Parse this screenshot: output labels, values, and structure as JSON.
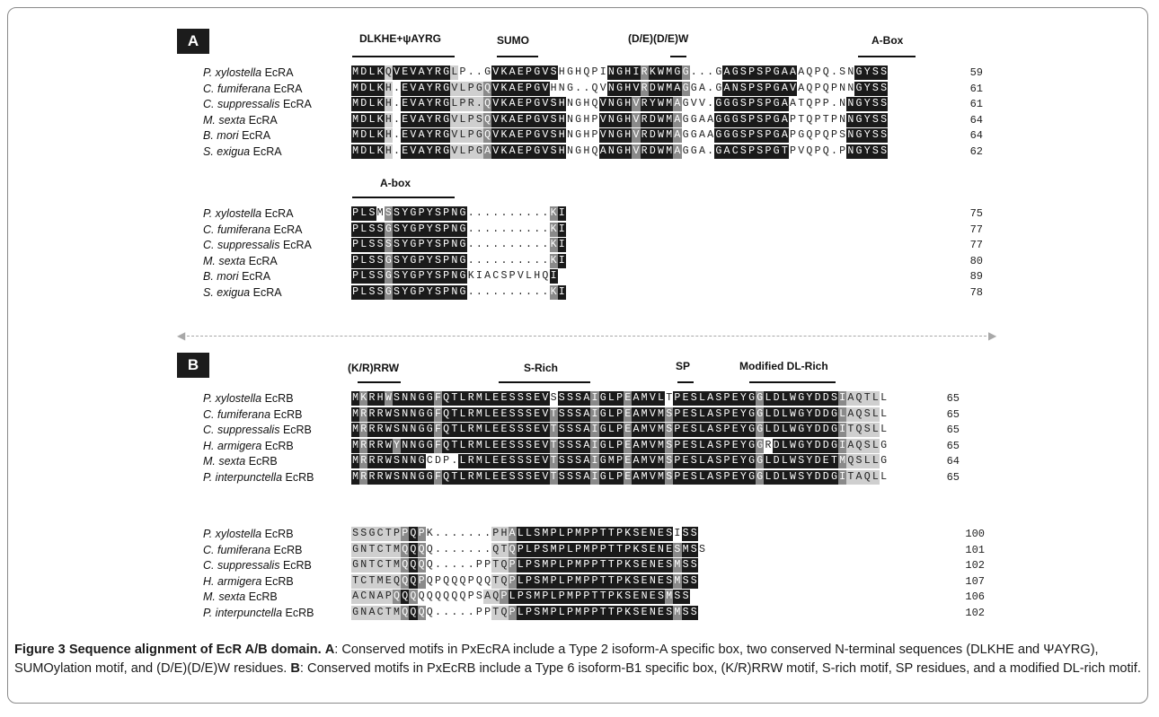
{
  "figure": {
    "panel_a_label": "A",
    "panel_b_label": "B",
    "caption": {
      "title": "Figure 3 Sequence alignment of EcR A/B domain.",
      "a_label": "A",
      "a_text": ": Conserved motifs in PxEcRA include a Type 2 isoform-A specific box, two conserved N-terminal sequences (DLKHE and ΨAYRG), SUMOylation motif, and (D/E)(D/E)W residues.",
      "b_label": "B",
      "b_text": ": Conserved motifs in PxEcRB include a Type 6 isoform-B1 specific box, (K/R)RRW motif, S-rich motif, SP residues, and a modified DL-rich motif."
    }
  },
  "motifs": {
    "a1": [
      "DLKHE+ψAYRG",
      "SUMO",
      "(D/E)(D/E)W",
      "A-Box"
    ],
    "a2": [
      "A-box"
    ],
    "b1": [
      "(K/R)RRW",
      "S-Rich",
      "SP",
      "Modified DL-Rich"
    ]
  },
  "alignments": [
    {
      "id": "a1",
      "rows": [
        {
          "genus": "P. xylostella",
          "gene": "EcRA",
          "seq": "MDLKQVEVAYRGLP..GVKAEPGVSHGHQPINGHIRKWMGG...GAGSPSPGAAAQPQ.SNGYSS",
          "shade": "bbbblbbbbbbblwwwwbbbbbbbbwwwwwwbbbbgbbbbgwwwwbbbbbbbbbwwwwwwwbbbbbb",
          "num": "59"
        },
        {
          "genus": "C. fumiferana",
          "gene": "EcRA",
          "seq": "MDLKH.EVAYRGVLPGQVKAEPGVHNG..QVNGHVRDWMAGGA.GANSPSPGAVAQPQPNNGYSS",
          "shade": "bbbblwbbbbbbllllgbbbbbbbwwwwwwwbbbbgbbbbgwwwwbbbbbbbbbwwwwwwwbbbbbb",
          "num": "61"
        },
        {
          "genus": "C. suppressalis",
          "gene": "EcRA",
          "seq": "MDLKH.EVAYRGLPR.QVKAEPGVSHNGHQVNGHVRYWMAGVV.GGGSPSPGAATQPP.NNGYSS",
          "shade": "bbbblwbbbbbbllllgbbbbbbbbbwwwwbbbbgbbbbgwwwwbbbbbbbbbwwwwwwwbbbbbb",
          "num": "61"
        },
        {
          "genus": "M. sexta",
          "gene": "EcRA",
          "seq": "MDLKH.EVAYRGVLPSQVKAEPGVSHNGHPVNGHVRDWMAGGAAGGGSPSPGAPTQPTPNNGYSS",
          "shade": "bbbblwbbbbbbllllgbbbbbbbbbwwwwbbbbgbbbbgwwwwbbbbbbbbbwwwwwwwbbbbbb",
          "num": "64"
        },
        {
          "genus": "B. mori",
          "gene": "EcRA",
          "seq": "MDLKH.EVAYRGVLPGQVKAEPGVSHNGHPVNGHVRDWMAGGAAGGGSPSPGAPGQPQPSNGYSS",
          "shade": "bbbblwbbbbbbllllgbbbbbbbbbwwwwbbbbgbbbbgwwwwbbbbbbbbbwwwwwwwbbbbbb",
          "num": "64"
        },
        {
          "genus": "S. exigua",
          "gene": "EcRA",
          "seq": "MDLKH.EVAYRGVLPGAVKAEPGVSHNGHQANGHVRDWMAGGA.GACSPSPGTPVQPQ.PNGYSS",
          "shade": "bbbblwbbbbbbllllgbbbbbbbbbwwwwbbbbgbbbbgwwwwbbbbbbbbbwwwwwwwbbbbbb",
          "num": "62"
        }
      ]
    },
    {
      "id": "a2",
      "rows": [
        {
          "genus": "P. xylostella",
          "gene": "EcRA",
          "seq": "PLSMSSYGPYSPNG..........KI",
          "shade": "bbbwgbbbbbbbbbwwwwwwwwwwgb",
          "num": "75"
        },
        {
          "genus": "C. fumiferana",
          "gene": "EcRA",
          "seq": "PLSSGSYGPYSPNG..........KI",
          "shade": "bbbbgbbbbbbbbbwwwwwwwwwwgb",
          "num": "77"
        },
        {
          "genus": "C. suppressalis",
          "gene": "EcRA",
          "seq": "PLSSSSYGPYSPNG..........KI",
          "shade": "bbbbgbbbbbbbbbwwwwwwwwwwgb",
          "num": "77"
        },
        {
          "genus": "M. sexta",
          "gene": "EcRA",
          "seq": "PLSSGSYGPYSPNG..........KI",
          "shade": "bbbbgbbbbbbbbbwwwwwwwwwwgb",
          "num": "80"
        },
        {
          "genus": "B. mori",
          "gene": "EcRA",
          "seq": "PLSSGSYGPYSPNGKIACSPVLHQI",
          "shade": "bbbbgbbbbbbbbbwwwwwwwwwwb",
          "num": "89"
        },
        {
          "genus": "S. exigua",
          "gene": "EcRA",
          "seq": "PLSSGSYGPYSPNG..........KI",
          "shade": "bbbbgbbbbbbbbbwwwwwwwwwwgb",
          "num": "78"
        }
      ]
    },
    {
      "id": "b1",
      "rows": [
        {
          "genus": "P. xylostella",
          "gene": "EcRB",
          "seq": "MKRHWSNNGGFQTLRMLEESSSEVSSSSAIGLPEAMVLTPESLASPEYGGLDLWGYDDSIAQTLL",
          "shade": "bgbbgbbbbbgbbbbbbbbbbbbbwbbbbgbbbgbbbbwbbbbbbbbbbgbbbbbbbbbgllll",
          "num": "65"
        },
        {
          "genus": "C. fumiferana",
          "gene": "EcRB",
          "seq": "MRRRWSNNGGFQTLRMLEESSSEVTSSSAIGLPEAMVMSPESLASPEYGGLDLWGYDDGLAQSLL",
          "shade": "bgbbbbbbbbgbbbbbbbbbbbbbgbbbbgbbbgbbbbgbbbbbbbbbbgbbbbbbbbbgllll",
          "num": "65"
        },
        {
          "genus": "C. suppressalis",
          "gene": "EcRB",
          "seq": "MRRRWSNNGGFQTLRMLEESSSEVTSSSAIGLPEAMVMSPESLASPEYGGLDLWGYDDGITQSLL",
          "shade": "bgbbbbbbbbgbbbbbbbbbbbbbgbbbbgbbbgbbbbgbbbbbbbbbbgbbbbbbbbbgllll",
          "num": "65"
        },
        {
          "genus": "H. armigera",
          "gene": "EcRB",
          "seq": "MRRRWYNNGGFQTLRMLEESSSEVTSSSAIGLPEAMVMSPESLASPEYGGRDLWGYDDGIAQSLG",
          "shade": "bgbbbgbbbbgbbbbbbbbbbbbbgbbbbgbbbgbbbbgbbbbbbbbbbgwbbbbbbbbgllll",
          "num": "65"
        },
        {
          "genus": "M. sexta",
          "gene": "EcRB",
          "seq": "MRRRWSNNGCDP.LRMLEESSSEVTSSSAIGMPEAMVMSPESLASPEYGGLDLWSYDETMQSLLG",
          "shade": "bgbbbbbbbwwwwbbbbbbbbbbbgbbbbgbbbgbbbbgbbbbbbbbbbgbbbbbbbbbgllll",
          "num": "64"
        },
        {
          "genus": "P. interpunctella",
          "gene": "EcRB",
          "seq": "MRRRWSNNGGFQTLRMLEESSSEVTSSSAIGLPEAMVMSPESLASPEYGGLDLWSYDDGITAQLL",
          "shade": "bgbbbbbbbbgbbbbbbbbbbbbbgbbbbgbbbgbbbbgbbbbbbbbbbgbbbbbbbbbgllll",
          "num": "65"
        }
      ]
    },
    {
      "id": "b2",
      "rows": [
        {
          "genus": "P. xylostella",
          "gene": "EcRB",
          "seq": "SSGCTPPQPK.......PHALLSMPLPMPPTTPKSENESISS",
          "shade": "llllllgbgwwwwwwwwllgbbbbbbbbbbbbbbbbbbbwbb",
          "num": "100"
        },
        {
          "genus": "C. fumiferana",
          "gene": "EcRB",
          "seq": "GNTCTMQQQQ.......QTQPLPSMPLPMPPTTPKSENESMSS",
          "shade": "llllllgbgwwwwwwwwllgbbbbbbbbbbbbbbbbbbbgbb",
          "num": "101"
        },
        {
          "genus": "C. suppressalis",
          "gene": "EcRB",
          "seq": "GNTCTMQQQQ.....PPTQPLPSMPLPMPPTTPKSENESMSS",
          "shade": "llllllgbgwwwwwwwwllgbbbbbbbbbbbbbbbbbbbgbb",
          "num": "102"
        },
        {
          "genus": "H. armigera",
          "gene": "EcRB",
          "seq": "TCTMEQQQPQPQQQPQQTQPLPSMPLPMPPTTPKSENESMSS",
          "shade": "llllllgbgwwwwwwwwllgbbbbbbbbbbbbbbbbbbbgbb",
          "num": "107"
        },
        {
          "genus": "M. sexta",
          "gene": "EcRB",
          "seq": "ACNAPQQQQQQQQQPSAQPLPSMPLPMPPTTPKSENESMSS",
          "shade": "lllllgbgwwwwwwwwllgbbbbbbbbbbbbbbbbbbbgbb",
          "num": "106"
        },
        {
          "genus": "P. interpunctella",
          "gene": "EcRB",
          "seq": "GNACTMQQQQ.....PPTQPLPSMPLPMPPTTPKSENESMSS",
          "shade": "llllllgbgwwwwwwwwllgbbbbbbbbbbbbbbbbbbbgbb",
          "num": "102"
        }
      ]
    }
  ],
  "colors": {
    "black_shade": "#1a1a1a",
    "dark_gray_shade": "#8a8a8a",
    "light_gray_shade": "#cfcfcf",
    "frame": "#8a8a8a"
  }
}
